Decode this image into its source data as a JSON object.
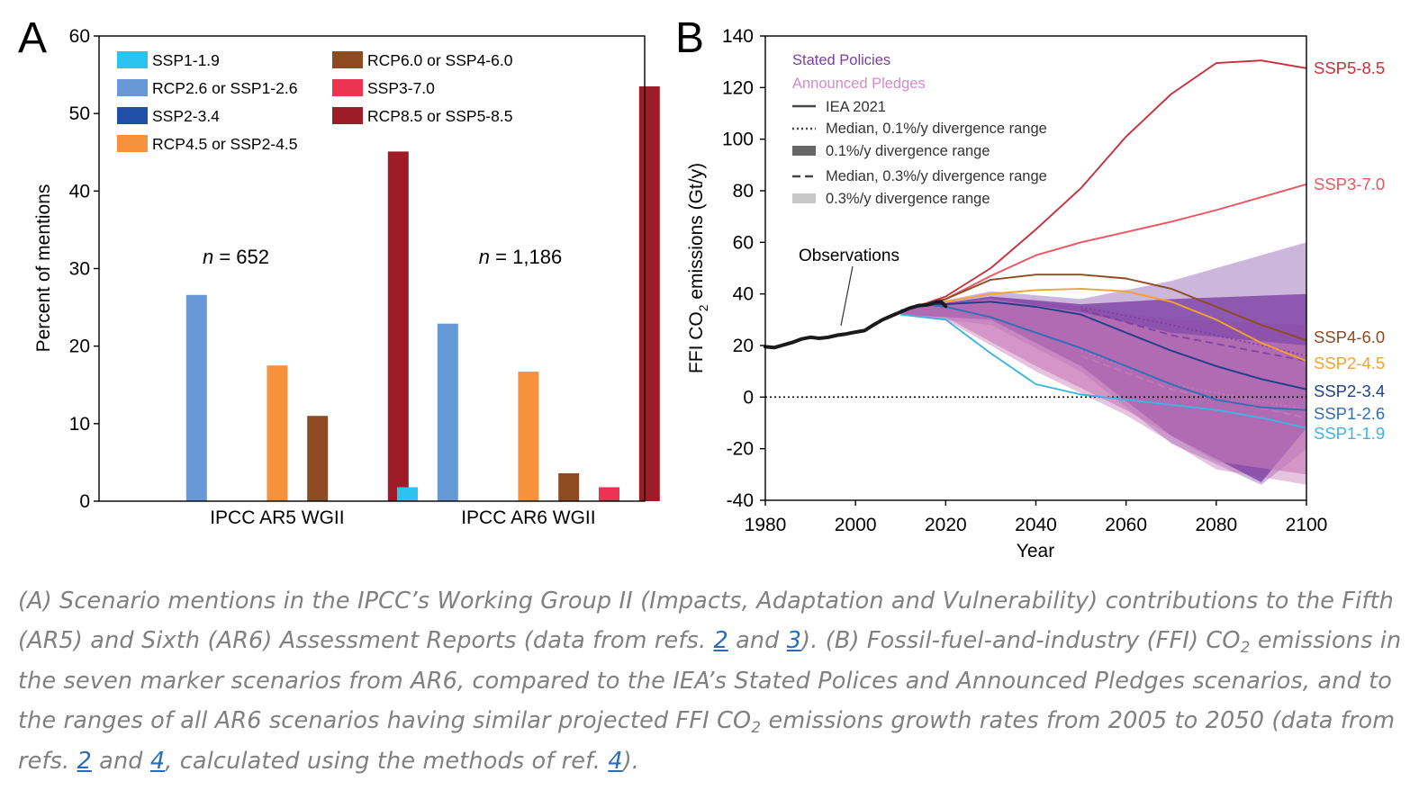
{
  "panel_a": {
    "letter": "A",
    "n_labels": [
      {
        "prefix": "n",
        "value": " = 652"
      },
      {
        "prefix": "n",
        "value": " = 1,186"
      }
    ]
  },
  "panel_b": {
    "letter": "B",
    "legend": {
      "stated": "Stated Policies",
      "announced": "Announced Pledges",
      "iea": "IEA 2021",
      "median01": "Median, 0.1%/y divergence range",
      "range01": "0.1%/y divergence range",
      "median03": "Median, 0.3%/y divergence range",
      "range03": "0.3%/y divergence range"
    },
    "annotation": "Observations",
    "ylabel_parts": [
      "FFI CO",
      "2",
      " emissions (Gt/y)"
    ]
  },
  "caption": {
    "s1": "(A) Scenario mentions in the IPCC’s Working Group II (Impacts, Adaptation and Vulnerability) contributions to the Fifth (AR5) and Sixth (AR6) Assessment Reports (data from refs. ",
    "r1": "2",
    "s2": " and ",
    "r2": "3",
    "s3": "). (B) Fossil-fuel-and-industry (FFI) CO",
    "sub1": "2",
    "s4": " emissions in the seven marker scenarios from AR6, compared to the IEA’s Stated Polices and Announced Pledges scenarios, and to the ranges of all AR6 scenarios having similar projected FFI CO",
    "sub2": "2",
    "s5": " emissions growth rates from 2005 to 2050 (data from refs. ",
    "r3": "2",
    "s6": " and ",
    "r4": "4",
    "s7": ", calculated using the methods of ref. ",
    "r5": "4",
    "s8": ")."
  },
  "chart_data": [
    {
      "type": "bar",
      "title": "",
      "xlabel": "",
      "ylabel": "Percent of mentions",
      "ylim": [
        0,
        60
      ],
      "yticks": [
        0,
        10,
        20,
        30,
        40,
        50,
        60
      ],
      "categories": [
        "IPCC AR5 WGII",
        "IPCC AR6 WGII"
      ],
      "legend": "top-left, two columns",
      "series": [
        {
          "name": "SSP1-1.9",
          "color": "#2dc3f0",
          "values": [
            0,
            1.8
          ]
        },
        {
          "name": "RCP2.6 or SSP1-2.6",
          "color": "#6699d5",
          "values": [
            26.6,
            22.9
          ]
        },
        {
          "name": "SSP2-3.4",
          "color": "#1f4fa6",
          "values": [
            0,
            0
          ]
        },
        {
          "name": "RCP4.5 or SSP2-4.5",
          "color": "#f6923b",
          "values": [
            17.5,
            16.7
          ]
        },
        {
          "name": "RCP6.0 or SSP4-6.0",
          "color": "#8e4b22",
          "values": [
            11.0,
            3.6
          ]
        },
        {
          "name": "SSP3-7.0",
          "color": "#ec3351",
          "values": [
            0,
            1.8
          ]
        },
        {
          "name": "RCP8.5 or SSP5-8.5",
          "color": "#9e1c28",
          "values": [
            45.1,
            53.5
          ]
        }
      ]
    },
    {
      "type": "line",
      "title": "",
      "xlabel": "Year",
      "ylabel": "FFI CO2 emissions (Gt/y)",
      "xlim": [
        1980,
        2100
      ],
      "ylim": [
        -40,
        140
      ],
      "xticks": [
        1980,
        2000,
        2020,
        2040,
        2060,
        2080,
        2100
      ],
      "yticks": [
        -40,
        -20,
        0,
        20,
        40,
        60,
        80,
        100,
        120,
        140
      ],
      "zero_line": "dotted",
      "legend": "top-left",
      "observations": {
        "name": "Observations",
        "color": "#1a1a1a",
        "points": [
          [
            1980,
            19.5
          ],
          [
            1982,
            19.2
          ],
          [
            1984,
            20.2
          ],
          [
            1986,
            21.2
          ],
          [
            1988,
            22.5
          ],
          [
            1990,
            23.2
          ],
          [
            1992,
            22.8
          ],
          [
            1994,
            23.2
          ],
          [
            1996,
            24.0
          ],
          [
            1998,
            24.5
          ],
          [
            2000,
            25.2
          ],
          [
            2002,
            25.8
          ],
          [
            2004,
            28.0
          ],
          [
            2006,
            30.0
          ],
          [
            2008,
            31.5
          ],
          [
            2010,
            33.0
          ],
          [
            2012,
            34.5
          ],
          [
            2014,
            35.5
          ],
          [
            2016,
            35.8
          ],
          [
            2018,
            36.8
          ],
          [
            2019,
            37.0
          ],
          [
            2020,
            35.2
          ]
        ]
      },
      "series": [
        {
          "name": "SSP5-8.5",
          "color": "#c8303c",
          "points": [
            [
              2015,
              36
            ],
            [
              2020,
              39
            ],
            [
              2030,
              50
            ],
            [
              2040,
              65
            ],
            [
              2050,
              81
            ],
            [
              2060,
              101
            ],
            [
              2070,
              117.5
            ],
            [
              2080,
              129.5
            ],
            [
              2090,
              130.5
            ],
            [
              2100,
              127.5
            ]
          ]
        },
        {
          "name": "SSP3-7.0",
          "color": "#ec5560",
          "points": [
            [
              2015,
              36
            ],
            [
              2020,
              38
            ],
            [
              2030,
              47
            ],
            [
              2040,
              55
            ],
            [
              2050,
              60
            ],
            [
              2060,
              64
            ],
            [
              2070,
              68
            ],
            [
              2080,
              72.5
            ],
            [
              2090,
              77.5
            ],
            [
              2100,
              82.5
            ]
          ]
        },
        {
          "name": "SSP4-6.0",
          "color": "#8e4b22",
          "points": [
            [
              2015,
              36
            ],
            [
              2020,
              38
            ],
            [
              2030,
              45.5
            ],
            [
              2040,
              47.5
            ],
            [
              2050,
              47.5
            ],
            [
              2060,
              46
            ],
            [
              2070,
              42
            ],
            [
              2080,
              35
            ],
            [
              2090,
              28
            ],
            [
              2100,
              22
            ]
          ]
        },
        {
          "name": "SSP2-4.5",
          "color": "#f3a32a",
          "points": [
            [
              2015,
              36
            ],
            [
              2020,
              37
            ],
            [
              2030,
              40
            ],
            [
              2040,
              41.5
            ],
            [
              2050,
              42
            ],
            [
              2060,
              41
            ],
            [
              2070,
              37
            ],
            [
              2080,
              30
            ],
            [
              2090,
              21
            ],
            [
              2100,
              14
            ]
          ]
        },
        {
          "name": "SSP2-3.4",
          "color": "#1f3f8a",
          "points": [
            [
              2015,
              36
            ],
            [
              2020,
              36
            ],
            [
              2030,
              37
            ],
            [
              2040,
              35
            ],
            [
              2050,
              32
            ],
            [
              2060,
              25
            ],
            [
              2070,
              18
            ],
            [
              2080,
              12
            ],
            [
              2090,
              7
            ],
            [
              2100,
              3
            ]
          ]
        },
        {
          "name": "SSP1-2.6",
          "color": "#2e6fb5",
          "points": [
            [
              2015,
              36
            ],
            [
              2020,
              35
            ],
            [
              2030,
              31
            ],
            [
              2040,
              25
            ],
            [
              2050,
              19
            ],
            [
              2060,
              12
            ],
            [
              2070,
              5
            ],
            [
              2080,
              -1
            ],
            [
              2090,
              -4
            ],
            [
              2100,
              -5
            ]
          ]
        },
        {
          "name": "SSP1-1.9",
          "color": "#3cb5e2",
          "points": [
            [
              2010,
              32
            ],
            [
              2020,
              30
            ],
            [
              2030,
              17
            ],
            [
              2040,
              5
            ],
            [
              2050,
              1
            ],
            [
              2060,
              -1
            ],
            [
              2070,
              -3
            ],
            [
              2080,
              -5
            ],
            [
              2090,
              -8
            ],
            [
              2100,
              -12
            ]
          ]
        }
      ],
      "stated_policies": {
        "color": "#7b3ea3",
        "range_01": {
          "upper": [
            [
              2010,
              34
            ],
            [
              2030,
              39
            ],
            [
              2050,
              36
            ],
            [
              2070,
              38
            ],
            [
              2100,
              40
            ]
          ],
          "lower": [
            [
              2100,
              -12
            ],
            [
              2090,
              -33
            ],
            [
              2070,
              -15
            ],
            [
              2050,
              12
            ],
            [
              2030,
              30
            ],
            [
              2010,
              32
            ]
          ]
        },
        "range_03": {
          "upper": [
            [
              2010,
              34
            ],
            [
              2030,
              41
            ],
            [
              2050,
              38
            ],
            [
              2070,
              45
            ],
            [
              2100,
              60
            ]
          ],
          "lower": [
            [
              2100,
              -20
            ],
            [
              2090,
              -34
            ],
            [
              2070,
              -18
            ],
            [
              2050,
              10
            ],
            [
              2030,
              28
            ],
            [
              2010,
              32
            ]
          ]
        },
        "median_01": [
          [
            2050,
            35
          ],
          [
            2070,
            28
          ],
          [
            2100,
            16
          ]
        ],
        "median_03": [
          [
            2050,
            34
          ],
          [
            2070,
            24
          ],
          [
            2100,
            14
          ]
        ]
      },
      "announced_pledges": {
        "color": "#c77ab8",
        "range_01": {
          "upper": [
            [
              2010,
              34
            ],
            [
              2030,
              38
            ],
            [
              2050,
              33
            ],
            [
              2070,
              25
            ],
            [
              2100,
              20
            ]
          ],
          "lower": [
            [
              2100,
              -30
            ],
            [
              2080,
              -25
            ],
            [
              2060,
              -5
            ],
            [
              2040,
              12
            ],
            [
              2020,
              31
            ],
            [
              2010,
              32
            ]
          ]
        },
        "range_03": {
          "upper": [
            [
              2010,
              34
            ],
            [
              2030,
              39
            ],
            [
              2050,
              35
            ],
            [
              2070,
              30
            ],
            [
              2100,
              28
            ]
          ],
          "lower": [
            [
              2100,
              -34
            ],
            [
              2080,
              -28
            ],
            [
              2060,
              -7
            ],
            [
              2040,
              10
            ],
            [
              2020,
              30
            ],
            [
              2010,
              32
            ]
          ]
        },
        "median_01": [
          [
            2050,
            18
          ],
          [
            2070,
            5
          ],
          [
            2100,
            -5
          ]
        ],
        "median_03": [
          [
            2050,
            16
          ],
          [
            2070,
            3
          ],
          [
            2100,
            -8
          ]
        ]
      }
    }
  ]
}
